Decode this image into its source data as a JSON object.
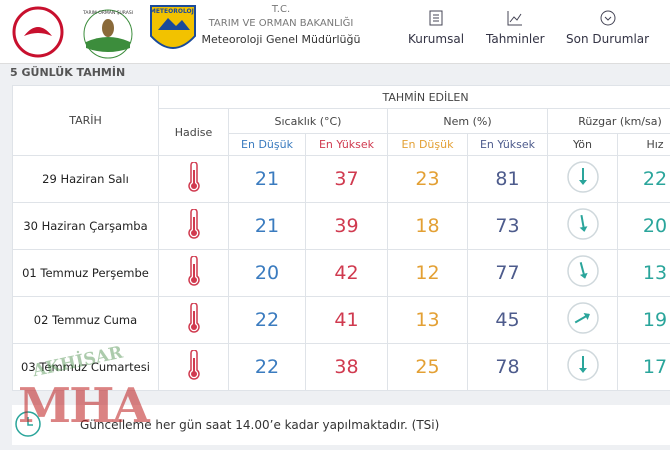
{
  "header": {
    "tc": "T.C.",
    "ministry": "TARIM VE ORMAN BAKANLIĞI",
    "department": "Meteoroloji Genel Müdürlüğü",
    "logo_texts": [
      "TARIM ORMAN ŞURASI",
      "METEOROLOJİ"
    ],
    "nav": [
      "Kurumsal",
      "Tahminler",
      "Son Durumlar"
    ]
  },
  "section_title": "5 GÜNLÜK TAHMİN",
  "table": {
    "headers": {
      "date": "TARİH",
      "forecast": "TAHMİN EDİLEN",
      "event": "Hadise",
      "temperature": "Sıcaklık (°C)",
      "humidity": "Nem (%)",
      "wind": "Rüzgar (km/sa)",
      "temp_min": "En Düşük",
      "temp_max": "En Yüksek",
      "hum_min": "En Düşük",
      "hum_max": "En Yüksek",
      "direction": "Yön",
      "speed": "Hız"
    },
    "rows": [
      {
        "date": "29 Haziran Salı",
        "temp_min": 21,
        "temp_max": 37,
        "hum_min": 23,
        "hum_max": 81,
        "wind_dir": 180,
        "wind_speed": 22
      },
      {
        "date": "30 Haziran Çarşamba",
        "temp_min": 21,
        "temp_max": 39,
        "hum_min": 18,
        "hum_max": 73,
        "wind_dir": 170,
        "wind_speed": 20
      },
      {
        "date": "01 Temmuz Perşembe",
        "temp_min": 20,
        "temp_max": 42,
        "hum_min": 12,
        "hum_max": 77,
        "wind_dir": 165,
        "wind_speed": 13
      },
      {
        "date": "02 Temmuz Cuma",
        "temp_min": 22,
        "temp_max": 41,
        "hum_min": 13,
        "hum_max": 45,
        "wind_dir": 60,
        "wind_speed": 19
      },
      {
        "date": "03 Temmuz Cumartesi",
        "temp_min": 22,
        "temp_max": 38,
        "hum_min": 25,
        "hum_max": 78,
        "wind_dir": 180,
        "wind_speed": 17
      }
    ]
  },
  "footer_note": "Güncelleme her gün saat 14.00’e kadar yapılmaktadır. (TSi)",
  "watermark": {
    "top": "AKHİSAR",
    "main": "MHA"
  }
}
